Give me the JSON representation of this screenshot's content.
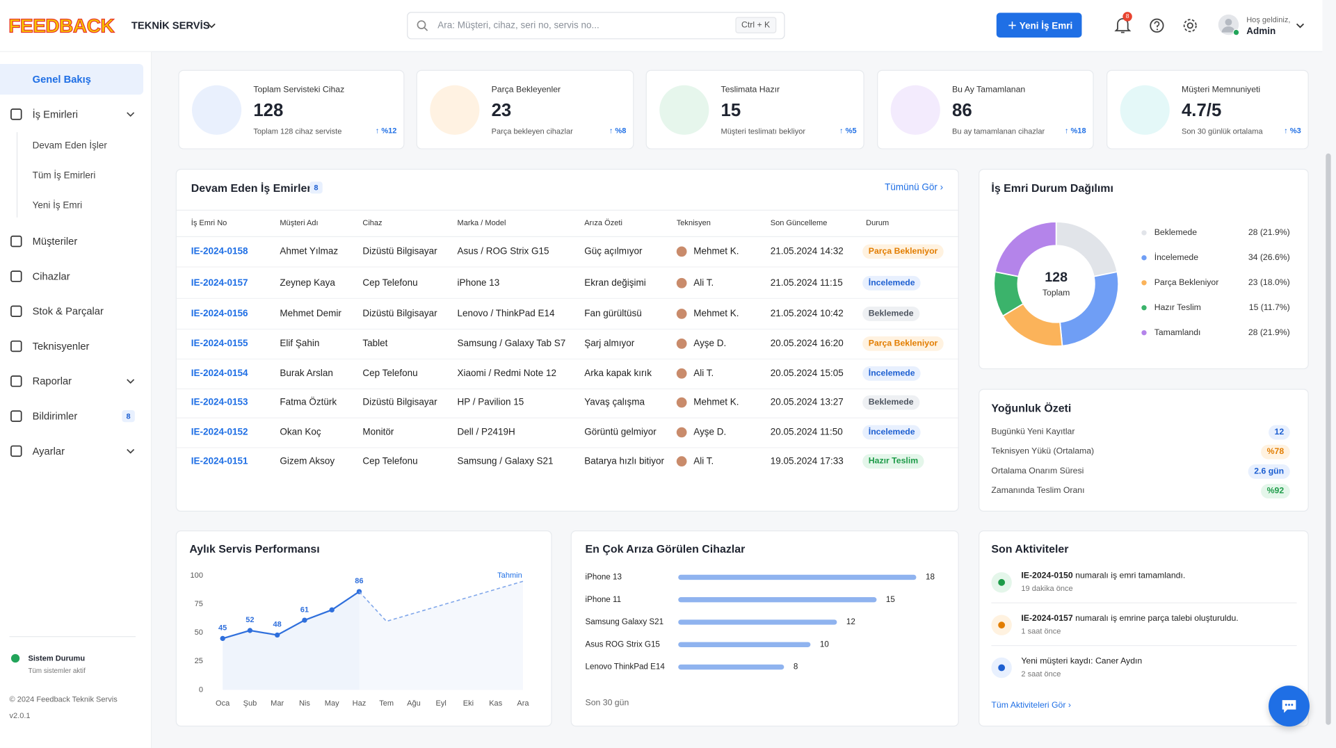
{
  "header": {
    "brand": "FEEDBACK",
    "service": "TEKNİK SERVİS",
    "search_placeholder": "Ara: Müşteri, cihaz, seri no, servis no...",
    "shortcut": "Ctrl + K",
    "new_button": "Yeni İş Emri",
    "notification_count": 8,
    "greeting": "Hoş geldiniz,",
    "user": "Admin"
  },
  "sidebar": {
    "items": [
      {
        "label": "Genel Bakış",
        "active": true
      },
      {
        "label": "İş Emirleri",
        "expandable": true,
        "children": [
          "Devam Eden İşler",
          "Tüm İş Emirleri",
          "Yeni İş Emri"
        ]
      },
      {
        "label": "Müşteriler"
      },
      {
        "label": "Cihazlar"
      },
      {
        "label": "Stok & Parçalar"
      },
      {
        "label": "Teknisyenler"
      },
      {
        "label": "Raporlar",
        "expandable": true
      },
      {
        "label": "Bildirimler",
        "badge": 8
      },
      {
        "label": "Ayarlar",
        "expandable": true
      }
    ],
    "status_title": "Sistem Durumu",
    "status_text": "Tüm sistemler aktif",
    "copyright": "© 2024 Feedback Teknik Servis",
    "version": "v2.0.1"
  },
  "stats": [
    {
      "title": "Toplam Servisteki Cihaz",
      "value": 128,
      "note": "Toplam 128 cihaz serviste",
      "change": "%12",
      "color": "#2f6fdc",
      "bg": "#e9f0fd"
    },
    {
      "title": "Parça Bekleyenler",
      "value": 23,
      "note": "Parça bekleyen cihazlar",
      "change": "%8",
      "color": "#f39a1e",
      "bg": "#fff2e2"
    },
    {
      "title": "Teslimata Hazır",
      "value": 15,
      "note": "Müşteri teslimatı bekliyor",
      "change": "%5",
      "color": "#22a45a",
      "bg": "#e6f6ec"
    },
    {
      "title": "Bu Ay Tamamlanan",
      "value": 86,
      "note": "Bu ay tamamlanan cihazlar",
      "change": "%18",
      "color": "#8e4fe0",
      "bg": "#f3ebfd"
    },
    {
      "title": "Müşteri Memnuniyeti",
      "value": "4.7/5",
      "note": "Son 30 günlük ortalama",
      "change": "%3",
      "color": "#27c1c8",
      "bg": "#e4f8f8"
    }
  ],
  "orders": {
    "title": "Devam Eden İş Emirleri",
    "count": 8,
    "link": "Tümünü Gör",
    "columns": [
      "İş Emri No",
      "Müşteri Adı",
      "Cihaz",
      "Marka / Model",
      "Arıza Özeti",
      "Teknisyen",
      "Son Güncelleme",
      "Durum"
    ],
    "rows": [
      {
        "id": "IE-2024-0158",
        "customer": "Ahmet Yılmaz",
        "device": "Dizüstü Bilgisayar",
        "model": "Asus / ROG Strix G15",
        "issue": "Güç açılmıyor",
        "tech": "Mehmet K.",
        "updated": "21.05.2024 14:32",
        "status": "Parça Bekleniyor",
        "tone": "orange"
      },
      {
        "id": "IE-2024-0157",
        "customer": "Zeynep Kaya",
        "device": "Cep Telefonu",
        "model": "iPhone 13",
        "issue": "Ekran değişimi",
        "tech": "Ali T.",
        "updated": "21.05.2024 11:15",
        "status": "İncelemede",
        "tone": "blue"
      },
      {
        "id": "IE-2024-0156",
        "customer": "Mehmet Demir",
        "device": "Dizüstü Bilgisayar",
        "model": "Lenovo / ThinkPad E14",
        "issue": "Fan gürültüsü",
        "tech": "Mehmet K.",
        "updated": "21.05.2024 10:42",
        "status": "Beklemede",
        "tone": "gray"
      },
      {
        "id": "IE-2024-0155",
        "customer": "Elif Şahin",
        "device": "Tablet",
        "model": "Samsung / Galaxy Tab S7",
        "issue": "Şarj almıyor",
        "tech": "Ayşe D.",
        "updated": "20.05.2024 16:20",
        "status": "Parça Bekleniyor",
        "tone": "orange"
      },
      {
        "id": "IE-2024-0154",
        "customer": "Burak Arslan",
        "device": "Cep Telefonu",
        "model": "Xiaomi / Redmi Note 12",
        "issue": "Arka kapak kırık",
        "tech": "Ali T.",
        "updated": "20.05.2024 15:05",
        "status": "İncelemede",
        "tone": "blue"
      },
      {
        "id": "IE-2024-0153",
        "customer": "Fatma Öztürk",
        "device": "Dizüstü Bilgisayar",
        "model": "HP / Pavilion 15",
        "issue": "Yavaş çalışma",
        "tech": "Mehmet K.",
        "updated": "20.05.2024 13:27",
        "status": "Beklemede",
        "tone": "gray"
      },
      {
        "id": "IE-2024-0152",
        "customer": "Okan Koç",
        "device": "Monitör",
        "model": "Dell / P2419H",
        "issue": "Görüntü gelmiyor",
        "tech": "Ayşe D.",
        "updated": "20.05.2024 11:50",
        "status": "İncelemede",
        "tone": "blue"
      },
      {
        "id": "IE-2024-0151",
        "customer": "Gizem Aksoy",
        "device": "Cep Telefonu",
        "model": "Samsung / Galaxy S21",
        "issue": "Batarya hızlı bitiyor",
        "tech": "Ali T.",
        "updated": "19.05.2024 17:33",
        "status": "Hazır Teslim",
        "tone": "green"
      }
    ]
  },
  "density": {
    "title": "Yoğunluk Özeti",
    "items": [
      {
        "label": "Bugünkü Yeni Kayıtlar",
        "value": "12",
        "tone": "blue"
      },
      {
        "label": "Teknisyen Yükü (Ortalama)",
        "value": "%78",
        "tone": "orange"
      },
      {
        "label": "Ortalama Onarım Süresi",
        "value": "2.6 gün",
        "tone": "blue"
      },
      {
        "label": "Zamanında Teslim Oranı",
        "value": "%92",
        "tone": "green"
      }
    ]
  },
  "activities": {
    "title": "Son Aktiviteler",
    "link": "Tüm Aktiviteleri Gör",
    "items": [
      {
        "id": "IE-2024-0150",
        "text": " numaralı iş emri tamamlandı.",
        "time": "19 dakika önce",
        "tone": "green"
      },
      {
        "id": "IE-2024-0157",
        "text": " numaralı iş emrine parça talebi oluşturuldu.",
        "time": "1 saat önce",
        "tone": "orange"
      },
      {
        "text": "Yeni müşteri kaydı: Caner Aydın",
        "time": "2 saat önce",
        "tone": "blue"
      }
    ]
  },
  "chart_data": [
    {
      "type": "line",
      "title": "Aylık Servis Performansı",
      "categories": [
        "Oca",
        "Şub",
        "Mar",
        "Nis",
        "May",
        "Haz",
        "Tem",
        "Ağu",
        "Eyl",
        "Eki",
        "Kas",
        "Ara"
      ],
      "series": [
        {
          "color": "#2f6fdc",
          "values": [
            45,
            52,
            48,
            61,
            70,
            86,
            null,
            null,
            null,
            null,
            null,
            null
          ],
          "value_labels": [
            "45",
            "52",
            "48",
            "61",
            null,
            "86",
            null,
            null,
            null,
            null,
            null,
            null
          ]
        },
        {
          "name": "Tahmin",
          "color": "#7fa6ea",
          "dashed": true,
          "values": [
            null,
            null,
            null,
            null,
            null,
            86,
            60,
            67,
            74,
            81,
            88,
            95
          ]
        }
      ],
      "ylim": [
        0,
        100
      ],
      "yticks": [
        0,
        25,
        50,
        75,
        100
      ],
      "grid": false
    },
    {
      "type": "hbar",
      "title": "En Çok Arıza Görülen Cihazlar",
      "categories": [
        "iPhone 13",
        "iPhone 11",
        "Samsung Galaxy S21",
        "Asus ROG Strix G15",
        "Lenovo ThinkPad E14"
      ],
      "values": [
        18,
        15,
        12,
        10,
        8
      ],
      "color": "#8fb3ef",
      "xlim": [
        0,
        20
      ],
      "footer": "Son 30 gün"
    },
    {
      "type": "pie",
      "title": "İş Emri Durum Dağılımı",
      "donut": true,
      "center_value": 128,
      "center_label": "Toplam",
      "categories": [
        "Beklemede",
        "İncelemede",
        "Parça Bekleniyor",
        "Hazır Teslim",
        "Tamamlandı"
      ],
      "values": [
        28,
        34,
        23,
        15,
        28
      ],
      "value_labels": [
        "28 (21.9%)",
        "34 (26.6%)",
        "23 (18.0%)",
        "15 (11.7%)",
        "28 (21.9%)"
      ],
      "colors": [
        "#e1e4e9",
        "#6f9ef5",
        "#fbb35a",
        "#3bb36b",
        "#b484ea"
      ]
    }
  ]
}
